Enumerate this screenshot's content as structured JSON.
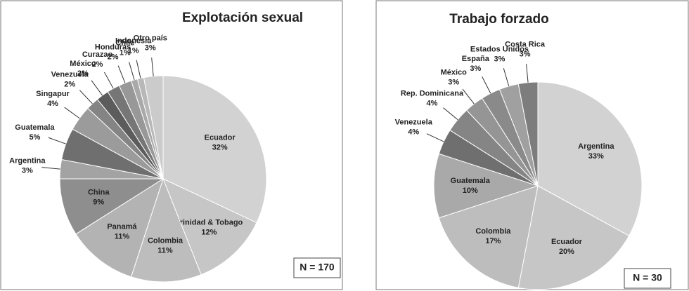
{
  "chart_data": [
    {
      "type": "pie",
      "title": "Explotación sexual",
      "note": "N = 170",
      "categories": [
        "Ecuador",
        "Trinidad & Tobago",
        "Colombia",
        "Panamá",
        "China",
        "Argentina",
        "Guatemala",
        "Singapur",
        "Venezuela",
        "México",
        "Curazao",
        "Honduras",
        "Chile",
        "Indonesia",
        "Otro país"
      ],
      "values": [
        32,
        12,
        11,
        11,
        9,
        3,
        5,
        4,
        2,
        2,
        2,
        2,
        1,
        1,
        3
      ],
      "value_labels": [
        "32%",
        "12%",
        "11%",
        "11%",
        "9%",
        "3%",
        "5%",
        "4%",
        "2%",
        "2%",
        "2%",
        "2%",
        "1%",
        "1%",
        "3%"
      ],
      "colors": [
        "#d2d2d2",
        "#c6c6c6",
        "#bdbdbd",
        "#b3b3b3",
        "#8e8e8e",
        "#a3a3a3",
        "#6f6f6f",
        "#9b9b9b",
        "#848484",
        "#5c5c5c",
        "#767676",
        "#989898",
        "#a9a9a9",
        "#b8b8b8",
        "#cbcbcb"
      ]
    },
    {
      "type": "pie",
      "title": "Trabajo forzado",
      "note": "N = 30",
      "categories": [
        "Argentina",
        "Ecuador",
        "Colombia",
        "Guatemala",
        "Venezuela",
        "Rep. Dominicana",
        "México",
        "España",
        "Estados Unidos",
        "Costa Rica"
      ],
      "values": [
        33,
        20,
        17,
        10,
        4,
        4,
        3,
        3,
        3,
        3
      ],
      "value_labels": [
        "33%",
        "20%",
        "17%",
        "10%",
        "4%",
        "4%",
        "3%",
        "3%",
        "3%",
        "3%"
      ],
      "colors": [
        "#d2d2d2",
        "#c6c6c6",
        "#bdbdbd",
        "#a9a9a9",
        "#6f6f6f",
        "#858585",
        "#959595",
        "#8a8a8a",
        "#a0a0a0",
        "#7d7d7d"
      ]
    }
  ]
}
